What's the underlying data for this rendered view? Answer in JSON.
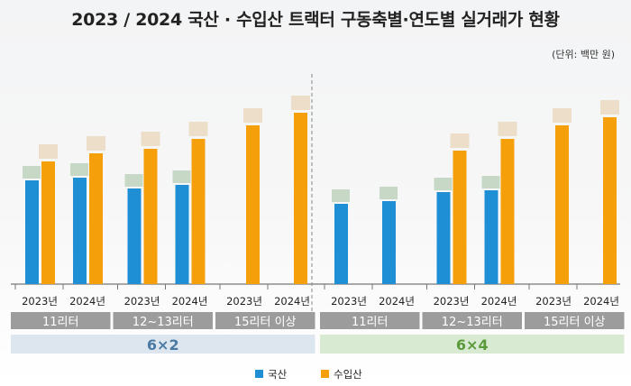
{
  "title": "2023 / 2024 국산 · 수입산 트랙터 구동축별·연도별 실거래가 현황",
  "unit_note": "(단위: 백만 원)",
  "colors": {
    "domestic": "#1e8fd5",
    "imported": "#f5a00b",
    "band_6x2": "#dde6ee",
    "band_6x4": "#d9ead3"
  },
  "chart_data": {
    "type": "bar",
    "title": "2023 / 2024 국산 · 수입산 트랙터 구동축별·연도별 실거래가 현황",
    "ylabel": "(단위: 백만 원)",
    "ylim": [
      0,
      200
    ],
    "series_names": [
      "국산",
      "수입산"
    ],
    "axles": [
      {
        "name": "6×2",
        "groups": [
          {
            "label": "11리터",
            "bars": [
              {
                "year": "2023년",
                "domestic": 115,
                "imported": 136
              },
              {
                "year": "2024년",
                "domestic": 118,
                "imported": 145
              }
            ]
          },
          {
            "label": "12~13리터",
            "bars": [
              {
                "year": "2023년",
                "domestic": 106,
                "imported": 150
              },
              {
                "year": "2024년",
                "domestic": 110,
                "imported": 161
              }
            ]
          },
          {
            "label": "15리터 이상",
            "bars": [
              {
                "year": "2023년",
                "domestic": null,
                "imported": 176
              },
              {
                "year": "2024년",
                "domestic": null,
                "imported": 190
              }
            ]
          }
        ]
      },
      {
        "name": "6×4",
        "groups": [
          {
            "label": "11리터",
            "bars": [
              {
                "year": "2023년",
                "domestic": 89,
                "imported": null
              },
              {
                "year": "2024년",
                "domestic": 92,
                "imported": null
              }
            ]
          },
          {
            "label": "12~13리터",
            "bars": [
              {
                "year": "2023년",
                "domestic": 102,
                "imported": 148
              },
              {
                "year": "2024년",
                "domestic": 104,
                "imported": 161
              }
            ]
          },
          {
            "label": "15리터 이상",
            "bars": [
              {
                "year": "2023년",
                "domestic": null,
                "imported": 176
              },
              {
                "year": "2024년",
                "domestic": null,
                "imported": 185
              }
            ]
          }
        ]
      }
    ],
    "legend": [
      "국산",
      "수입산"
    ],
    "legend_position": "bottom"
  }
}
